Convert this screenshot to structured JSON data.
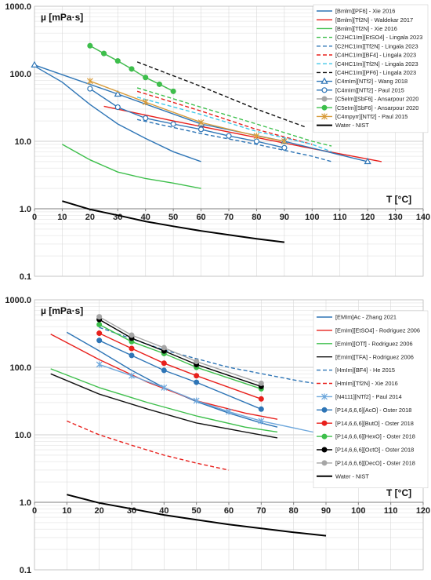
{
  "chart_data": [
    {
      "type": "line",
      "ylabel": "µ [mPa·s]",
      "xlabel": "T [°C]",
      "yscale": "log",
      "ylim": [
        0.1,
        1000
      ],
      "xlim": [
        0,
        140
      ],
      "yticks": [
        "0.1",
        "1.0",
        "10.0",
        "100.0",
        "1000.0"
      ],
      "xticks": [
        "0",
        "10",
        "20",
        "30",
        "40",
        "50",
        "60",
        "70",
        "80",
        "90",
        "100",
        "110",
        "120",
        "130",
        "140"
      ],
      "grid": true,
      "legend_position": "right",
      "series": [
        {
          "name": "[Bmlm][PF6] - Xie 2016",
          "color": "#2E75B6",
          "dash": "solid",
          "marker": "none",
          "x": [
            0,
            10,
            20,
            30,
            40,
            50,
            60
          ],
          "y": [
            130,
            75,
            35,
            18,
            11,
            7,
            5
          ]
        },
        {
          "name": "[Bmlm][Tf2N] - Waldekar 2017",
          "color": "#E8201C",
          "dash": "solid",
          "marker": "none",
          "x": [
            25,
            50,
            75,
            100,
            125
          ],
          "y": [
            33,
            20,
            12.5,
            7.8,
            5
          ]
        },
        {
          "name": "[Bmlm][Tf2N] - Xie 2016",
          "color": "#3DBF4B",
          "dash": "solid",
          "marker": "none",
          "x": [
            10,
            20,
            30,
            40,
            50,
            60
          ],
          "y": [
            9,
            5.3,
            3.5,
            2.8,
            2.4,
            2
          ]
        },
        {
          "name": "[C2HC1Im][EtSO4] - Lingala 2023",
          "color": "#3DBF4B",
          "dash": "dashed",
          "marker": "none",
          "x": [
            37,
            60,
            80,
            100,
            107
          ],
          "y": [
            62,
            32,
            18,
            10,
            8.5
          ]
        },
        {
          "name": "[C2HC1Im][Tf2N] - Lingala 2023",
          "color": "#2E75B6",
          "dash": "dashed",
          "marker": "none",
          "x": [
            37,
            60,
            80,
            100,
            107
          ],
          "y": [
            21,
            13,
            9,
            6,
            5
          ]
        },
        {
          "name": "[C4HC1Im][BF4] - Lingala 2023",
          "color": "#E8201C",
          "dash": "dashed",
          "marker": "none",
          "x": [
            37,
            60,
            80,
            100
          ],
          "y": [
            55,
            28,
            15,
            9
          ]
        },
        {
          "name": "[C4HC1Im][Tf2N] - Lingala 2023",
          "color": "#41C8E8",
          "dash": "dashed",
          "marker": "none",
          "x": [
            37,
            60,
            80,
            100,
            107
          ],
          "y": [
            45,
            25,
            14,
            9,
            7
          ]
        },
        {
          "name": "[C4HC1Im][PF6] - Lingala 2023",
          "color": "#111111",
          "dash": "dashed",
          "marker": "none",
          "x": [
            37,
            60,
            80,
            98
          ],
          "y": [
            150,
            65,
            30,
            16
          ]
        },
        {
          "name": "[C4mIm][NTf2] - Wang 2018",
          "color": "#2E75B6",
          "dash": "solid",
          "marker": "open-triangle",
          "x": [
            0,
            30,
            60,
            90,
            120
          ],
          "y": [
            135,
            50,
            18,
            10,
            5
          ]
        },
        {
          "name": "[C4mIm][NTf2] - Paul 2015",
          "color": "#2E75B6",
          "dash": "solid",
          "marker": "open-circle",
          "x": [
            20,
            30,
            40,
            50,
            60,
            70,
            80,
            90
          ],
          "y": [
            60,
            32,
            22,
            18,
            15,
            12,
            10,
            8
          ]
        },
        {
          "name": "[C5eIm][SbF6] - Ansarpour 2020",
          "color": "#A6A6A6",
          "dash": "solid",
          "marker": "filled-circle",
          "x": [
            20,
            25,
            30,
            35,
            40,
            45,
            50
          ],
          "y": [
            260,
            200,
            155,
            118,
            88,
            70,
            55
          ]
        },
        {
          "name": "[C5eIm][SbF6] - Ansarpour 2020",
          "color": "#3DBF4B",
          "dash": "solid",
          "marker": "filled-circle",
          "x": [
            20,
            25,
            30,
            35,
            40,
            45,
            50
          ],
          "y": [
            260,
            200,
            155,
            118,
            88,
            70,
            55
          ]
        },
        {
          "name": "[C4mpyrr][NTf2] - Paul 2015",
          "color": "#D79B3A",
          "dash": "solid",
          "marker": "star",
          "x": [
            20,
            40,
            60,
            80,
            90
          ],
          "y": [
            78,
            38,
            19,
            12,
            10
          ]
        },
        {
          "name": "Water - NIST",
          "color": "#000000",
          "dash": "solid",
          "marker": "none",
          "width": 2,
          "x": [
            10,
            20,
            30,
            40,
            50,
            60,
            70,
            80,
            90
          ],
          "y": [
            1.3,
            0.98,
            0.8,
            0.65,
            0.55,
            0.47,
            0.41,
            0.36,
            0.32
          ]
        }
      ]
    },
    {
      "type": "line",
      "ylabel": "µ [mPa·s]",
      "xlabel": "T [°C]",
      "yscale": "log",
      "ylim": [
        0.1,
        1000
      ],
      "xlim": [
        0,
        120
      ],
      "yticks": [
        "0.1",
        "1.0",
        "10.0",
        "100.0",
        "1000.0"
      ],
      "xticks": [
        "0",
        "10",
        "20",
        "30",
        "40",
        "50",
        "60",
        "70",
        "80",
        "90",
        "100",
        "110",
        "120"
      ],
      "grid": true,
      "legend_position": "right",
      "series": [
        {
          "name": "[EMIm]Ac - Zhang 2021",
          "color": "#2E75B6",
          "dash": "solid",
          "marker": "none",
          "x": [
            10,
            20,
            30,
            40,
            50,
            60,
            70,
            75
          ],
          "y": [
            330,
            175,
            90,
            50,
            31,
            21,
            15,
            13
          ]
        },
        {
          "name": "[EmIm][EtSO4] - Rodriguez 2006",
          "color": "#E8201C",
          "dash": "solid",
          "marker": "none",
          "x": [
            5,
            20,
            35,
            50,
            65,
            75
          ],
          "y": [
            310,
            130,
            60,
            32,
            21,
            17
          ]
        },
        {
          "name": "[EmIm][OTf] - Rodriguez 2006",
          "color": "#3DBF4B",
          "dash": "solid",
          "marker": "none",
          "x": [
            5,
            20,
            35,
            50,
            65,
            75
          ],
          "y": [
            95,
            50,
            30,
            19,
            13,
            11
          ]
        },
        {
          "name": "[EmIm][TFA] - Rodriguez 2006",
          "color": "#111111",
          "dash": "solid",
          "marker": "none",
          "x": [
            5,
            20,
            35,
            50,
            65,
            75
          ],
          "y": [
            80,
            40,
            24,
            15,
            11,
            9
          ]
        },
        {
          "name": "[HmIm][BF4] - He 2015",
          "color": "#2E75B6",
          "dash": "dashed",
          "marker": "none",
          "x": [
            20,
            40,
            60,
            80,
            100
          ],
          "y": [
            390,
            180,
            100,
            65,
            45
          ]
        },
        {
          "name": "[HmIm][Tf2N] - Xie 2016",
          "color": "#E8201C",
          "dash": "dashed",
          "marker": "none",
          "x": [
            10,
            20,
            30,
            40,
            50,
            60
          ],
          "y": [
            16,
            10,
            7,
            5,
            3.8,
            3
          ]
        },
        {
          "name": "[N4111][NTf2] - Paul 2014",
          "color": "#6FA8DC",
          "dash": "solid",
          "marker": "star",
          "x": [
            20,
            30,
            40,
            50,
            60,
            70,
            90
          ],
          "y": [
            110,
            75,
            50,
            32,
            22,
            16,
            10
          ]
        },
        {
          "name": "[P14,6,6,6][AcO] - Oster 2018",
          "color": "#2E75B6",
          "dash": "solid",
          "marker": "filled-circle",
          "x": [
            20,
            30,
            40,
            50,
            70
          ],
          "y": [
            250,
            150,
            90,
            60,
            24
          ]
        },
        {
          "name": "[P14,6,6,6][ButO] - Oster 2018",
          "color": "#E8201C",
          "dash": "solid",
          "marker": "filled-circle",
          "x": [
            20,
            30,
            40,
            50,
            70
          ],
          "y": [
            320,
            190,
            115,
            75,
            34
          ]
        },
        {
          "name": "[P14,6,6,6][HexO] - Oster 2018",
          "color": "#3DBF4B",
          "dash": "solid",
          "marker": "filled-circle",
          "x": [
            20,
            30,
            40,
            50,
            70
          ],
          "y": [
            430,
            240,
            160,
            100,
            48
          ]
        },
        {
          "name": "[P14,6,6,6][OctO] - Oster 2018",
          "color": "#000000",
          "dash": "solid",
          "marker": "filled-circle",
          "x": [
            20,
            30,
            40,
            50,
            70
          ],
          "y": [
            510,
            270,
            175,
            110,
            52
          ]
        },
        {
          "name": "[P14,6,6,6][DecO] - Oster 2018",
          "color": "#A6A6A6",
          "dash": "solid",
          "marker": "filled-circle",
          "x": [
            20,
            30,
            40,
            50,
            70
          ],
          "y": [
            560,
            300,
            195,
            122,
            58
          ]
        },
        {
          "name": "Water - NIST",
          "color": "#000000",
          "dash": "solid",
          "marker": "none",
          "width": 2,
          "x": [
            10,
            20,
            30,
            40,
            50,
            60,
            70,
            80,
            90
          ],
          "y": [
            1.3,
            0.98,
            0.8,
            0.65,
            0.55,
            0.47,
            0.41,
            0.36,
            0.32
          ]
        }
      ]
    }
  ]
}
